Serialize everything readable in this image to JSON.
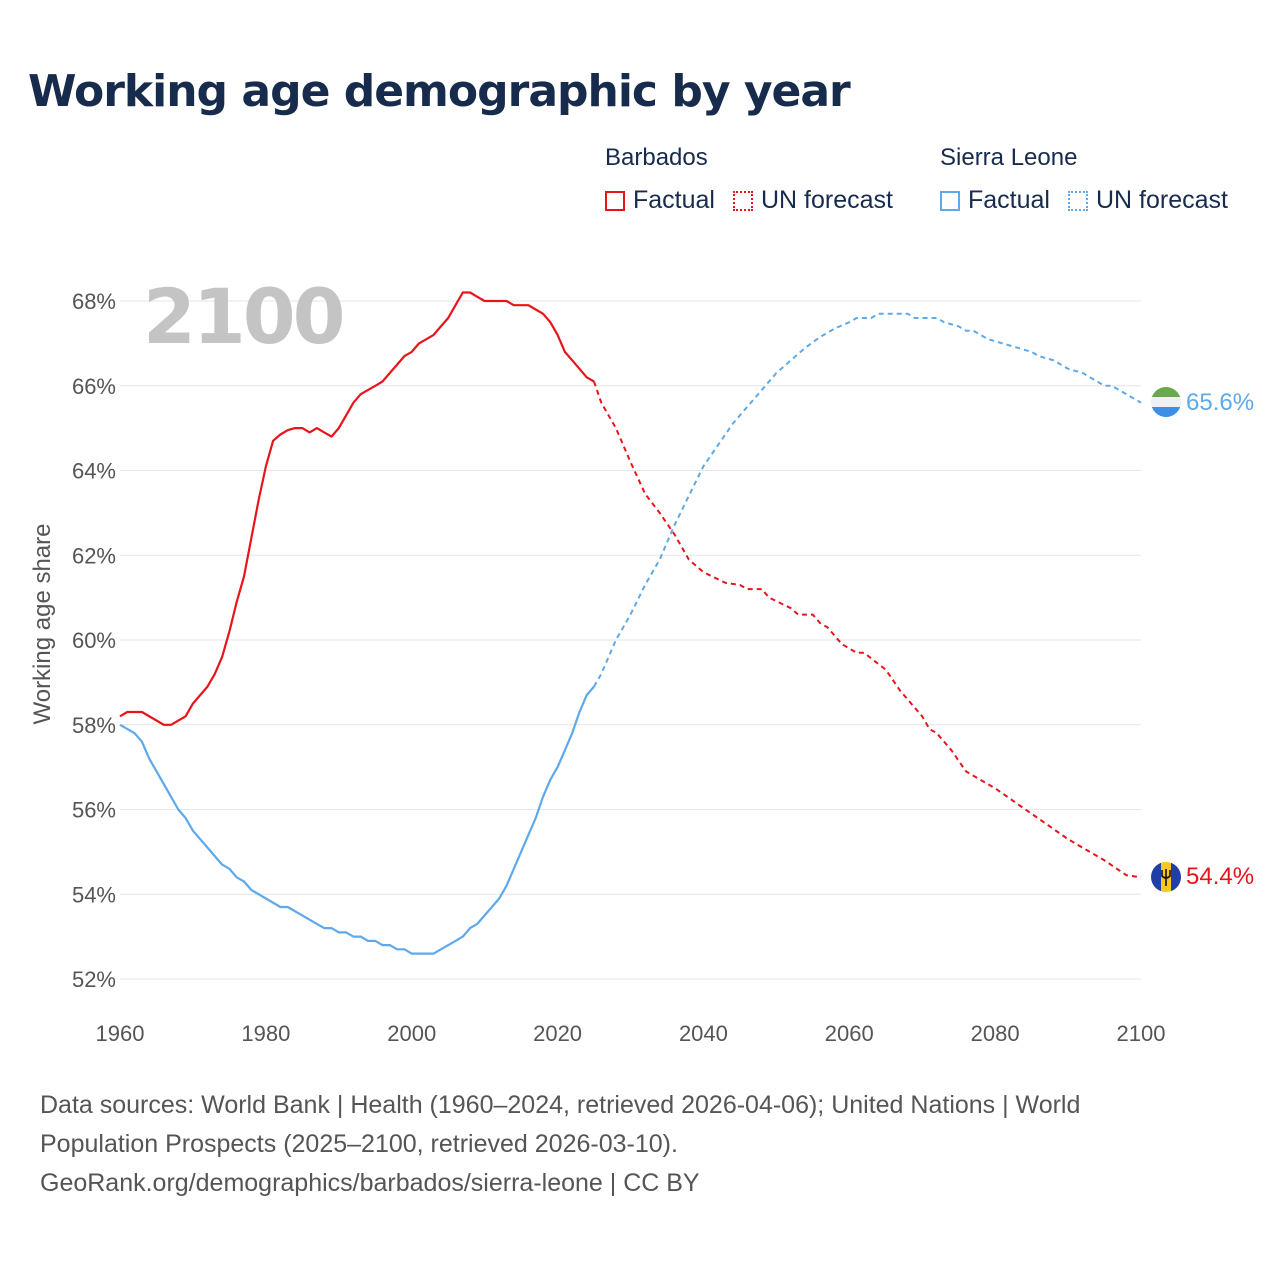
{
  "title": "Working age demographic by year",
  "legend": {
    "groups": [
      {
        "country": "Barbados",
        "factual_label": "Factual",
        "forecast_label": "UN forecast",
        "color": "#e8141b"
      },
      {
        "country": "Sierra Leone",
        "factual_label": "Factual",
        "forecast_label": "UN forecast",
        "color": "#5ea9e9"
      }
    ]
  },
  "chart_data": {
    "type": "line",
    "ylabel": "Working age share",
    "xlabel": "",
    "year_watermark": "2100",
    "xlim": [
      1960,
      2100
    ],
    "ylim": [
      52,
      68
    ],
    "x_ticks": [
      1960,
      1980,
      2000,
      2020,
      2040,
      2060,
      2080,
      2100
    ],
    "x_tick_labels": [
      "1960",
      "1980",
      "2000",
      "2020",
      "2040",
      "2060",
      "2080",
      "2100"
    ],
    "y_ticks": [
      52,
      54,
      56,
      58,
      60,
      62,
      64,
      66,
      68
    ],
    "y_tick_labels": [
      "52%",
      "54%",
      "56%",
      "58%",
      "60%",
      "62%",
      "64%",
      "66%",
      "68%"
    ],
    "factual_end_year": 2024,
    "series": [
      {
        "name": "Barbados",
        "color": "#e8141b",
        "end_label": "54.4%",
        "flag": "barbados-flag",
        "points": [
          [
            1960,
            58.2
          ],
          [
            1961,
            58.3
          ],
          [
            1963,
            58.3
          ],
          [
            1965,
            58.1
          ],
          [
            1966,
            58.0
          ],
          [
            1967,
            58.0
          ],
          [
            1969,
            58.2
          ],
          [
            1970,
            58.5
          ],
          [
            1972,
            58.9
          ],
          [
            1973,
            59.2
          ],
          [
            1974,
            59.6
          ],
          [
            1975,
            60.2
          ],
          [
            1976,
            60.9
          ],
          [
            1977,
            61.5
          ],
          [
            1978,
            62.4
          ],
          [
            1979,
            63.3
          ],
          [
            1980,
            64.1
          ],
          [
            1981,
            64.7
          ],
          [
            1982,
            64.85
          ],
          [
            1983,
            64.95
          ],
          [
            1984,
            65.0
          ],
          [
            1985,
            65.0
          ],
          [
            1986,
            64.9
          ],
          [
            1987,
            65.0
          ],
          [
            1988,
            64.9
          ],
          [
            1989,
            64.8
          ],
          [
            1990,
            65.0
          ],
          [
            1991,
            65.3
          ],
          [
            1992,
            65.6
          ],
          [
            1993,
            65.8
          ],
          [
            1995,
            66.0
          ],
          [
            1996,
            66.1
          ],
          [
            1997,
            66.3
          ],
          [
            1998,
            66.5
          ],
          [
            1999,
            66.7
          ],
          [
            2000,
            66.8
          ],
          [
            2001,
            67.0
          ],
          [
            2003,
            67.2
          ],
          [
            2004,
            67.4
          ],
          [
            2005,
            67.6
          ],
          [
            2006,
            67.9
          ],
          [
            2007,
            68.2
          ],
          [
            2008,
            68.2
          ],
          [
            2009,
            68.1
          ],
          [
            2010,
            68.0
          ],
          [
            2013,
            68.0
          ],
          [
            2014,
            67.9
          ],
          [
            2016,
            67.9
          ],
          [
            2017,
            67.8
          ],
          [
            2018,
            67.7
          ],
          [
            2019,
            67.5
          ],
          [
            2020,
            67.2
          ],
          [
            2021,
            66.8
          ],
          [
            2022,
            66.6
          ],
          [
            2023,
            66.4
          ],
          [
            2024,
            66.2
          ],
          [
            2025,
            66.1
          ],
          [
            2026,
            65.6
          ],
          [
            2028,
            65.0
          ],
          [
            2030,
            64.2
          ],
          [
            2032,
            63.45
          ],
          [
            2034,
            63.0
          ],
          [
            2035,
            62.75
          ],
          [
            2036,
            62.5
          ],
          [
            2037,
            62.2
          ],
          [
            2038,
            61.9
          ],
          [
            2040,
            61.6
          ],
          [
            2043,
            61.35
          ],
          [
            2045,
            61.3
          ],
          [
            2046,
            61.2
          ],
          [
            2048,
            61.2
          ],
          [
            2049,
            61.0
          ],
          [
            2052,
            60.75
          ],
          [
            2053,
            60.6
          ],
          [
            2055,
            60.6
          ],
          [
            2056,
            60.4
          ],
          [
            2057,
            60.3
          ],
          [
            2059,
            59.9
          ],
          [
            2061,
            59.7
          ],
          [
            2062,
            59.7
          ],
          [
            2065,
            59.3
          ],
          [
            2067,
            58.8
          ],
          [
            2070,
            58.2
          ],
          [
            2071,
            57.9
          ],
          [
            2072,
            57.8
          ],
          [
            2074,
            57.4
          ],
          [
            2076,
            56.9
          ],
          [
            2080,
            56.5
          ],
          [
            2085,
            55.9
          ],
          [
            2090,
            55.3
          ],
          [
            2095,
            54.8
          ],
          [
            2098,
            54.45
          ],
          [
            2100,
            54.4
          ]
        ]
      },
      {
        "name": "Sierra Leone",
        "color": "#5ea9e9",
        "end_label": "65.6%",
        "flag": "sierra-leone-flag",
        "points": [
          [
            1960,
            58.0
          ],
          [
            1962,
            57.8
          ],
          [
            1963,
            57.6
          ],
          [
            1964,
            57.2
          ],
          [
            1966,
            56.6
          ],
          [
            1968,
            56.0
          ],
          [
            1969,
            55.8
          ],
          [
            1970,
            55.5
          ],
          [
            1972,
            55.1
          ],
          [
            1974,
            54.7
          ],
          [
            1975,
            54.6
          ],
          [
            1976,
            54.4
          ],
          [
            1977,
            54.3
          ],
          [
            1978,
            54.1
          ],
          [
            1980,
            53.9
          ],
          [
            1982,
            53.7
          ],
          [
            1983,
            53.7
          ],
          [
            1985,
            53.5
          ],
          [
            1987,
            53.3
          ],
          [
            1988,
            53.2
          ],
          [
            1989,
            53.2
          ],
          [
            1990,
            53.1
          ],
          [
            1991,
            53.1
          ],
          [
            1992,
            53.0
          ],
          [
            1993,
            53.0
          ],
          [
            1994,
            52.9
          ],
          [
            1995,
            52.9
          ],
          [
            1996,
            52.8
          ],
          [
            1997,
            52.8
          ],
          [
            1998,
            52.7
          ],
          [
            1999,
            52.7
          ],
          [
            2000,
            52.6
          ],
          [
            2003,
            52.6
          ],
          [
            2004,
            52.7
          ],
          [
            2006,
            52.9
          ],
          [
            2007,
            53.0
          ],
          [
            2008,
            53.2
          ],
          [
            2009,
            53.3
          ],
          [
            2010,
            53.5
          ],
          [
            2011,
            53.7
          ],
          [
            2012,
            53.9
          ],
          [
            2013,
            54.2
          ],
          [
            2014,
            54.6
          ],
          [
            2016,
            55.4
          ],
          [
            2017,
            55.8
          ],
          [
            2018,
            56.3
          ],
          [
            2019,
            56.7
          ],
          [
            2020,
            57.0
          ],
          [
            2021,
            57.4
          ],
          [
            2022,
            57.8
          ],
          [
            2023,
            58.3
          ],
          [
            2024,
            58.7
          ],
          [
            2025,
            58.9
          ],
          [
            2026,
            59.2
          ],
          [
            2028,
            60.0
          ],
          [
            2030,
            60.6
          ],
          [
            2032,
            61.3
          ],
          [
            2034,
            61.9
          ],
          [
            2036,
            62.7
          ],
          [
            2038,
            63.4
          ],
          [
            2040,
            64.1
          ],
          [
            2042,
            64.6
          ],
          [
            2044,
            65.1
          ],
          [
            2046,
            65.5
          ],
          [
            2048,
            65.9
          ],
          [
            2050,
            66.3
          ],
          [
            2052,
            66.6
          ],
          [
            2054,
            66.9
          ],
          [
            2056,
            67.15
          ],
          [
            2058,
            67.35
          ],
          [
            2060,
            67.5
          ],
          [
            2061,
            67.6
          ],
          [
            2063,
            67.6
          ],
          [
            2064,
            67.7
          ],
          [
            2068,
            67.7
          ],
          [
            2069,
            67.6
          ],
          [
            2072,
            67.6
          ],
          [
            2073,
            67.5
          ],
          [
            2075,
            67.4
          ],
          [
            2076,
            67.3
          ],
          [
            2077,
            67.3
          ],
          [
            2078,
            67.2
          ],
          [
            2079,
            67.1
          ],
          [
            2081,
            67.0
          ],
          [
            2083,
            66.9
          ],
          [
            2085,
            66.8
          ],
          [
            2086,
            66.7
          ],
          [
            2088,
            66.6
          ],
          [
            2090,
            66.4
          ],
          [
            2092,
            66.3
          ],
          [
            2093,
            66.2
          ],
          [
            2094,
            66.1
          ],
          [
            2095,
            66.0
          ],
          [
            2096,
            66.0
          ],
          [
            2098,
            65.8
          ],
          [
            2099,
            65.7
          ],
          [
            2100,
            65.6
          ]
        ]
      }
    ]
  },
  "footer": {
    "line1": "Data sources: World Bank | Health (1960–2024, retrieved 2026-04-06); United Nations | World",
    "line2": "Population Prospects (2025–2100, retrieved 2026-03-10).",
    "line3": "GeoRank.org/demographics/barbados/sierra-leone | CC BY"
  }
}
